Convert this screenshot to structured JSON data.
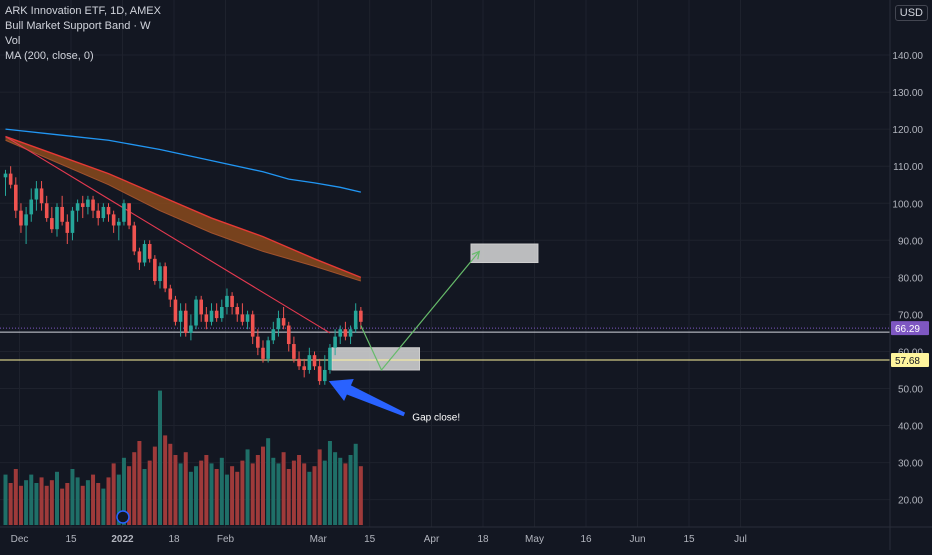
{
  "legend": {
    "symbol_line": "ARK Innovation ETF, 1D, AMEX",
    "indicator1": "Bull Market Support Band · W",
    "indicator2": "Vol",
    "indicator3": "MA (200, close, 0)"
  },
  "currency_label": "USD",
  "annotation_text": "Gap close!",
  "colors": {
    "background": "#131722",
    "up": "#26a69a",
    "down": "#ef5350",
    "vol_up": "#1f6f68",
    "vol_down": "#9e3a3a",
    "ma200": "#2196f3",
    "band_top": "#e53935",
    "band_fill": "#8a4a1c",
    "trendline": "#e53950",
    "projection": "#66bb6a",
    "arrow": "#2962ff",
    "support_line": "#fff59d",
    "price_badge": "#7e57c2"
  },
  "chart_data": {
    "type": "candlestick",
    "title": "ARK Innovation ETF, 1D, AMEX",
    "currency": "USD",
    "ylim": [
      10,
      150
    ],
    "y_ticks": [
      "20.00",
      "30.00",
      "40.00",
      "50.00",
      "60.00",
      "70.00",
      "80.00",
      "90.00",
      "100.00",
      "110.00",
      "120.00",
      "130.00",
      "140.00"
    ],
    "x_tick_labels": [
      {
        "label": "Dec",
        "bar": 0
      },
      {
        "label": "15",
        "bar": 10
      },
      {
        "label": "2022",
        "bar": 20
      },
      {
        "label": "18",
        "bar": 30
      },
      {
        "label": "Feb",
        "bar": 40
      },
      {
        "label": "Mar",
        "bar": 58
      },
      {
        "label": "15",
        "bar": 68
      },
      {
        "label": "Apr",
        "bar": 80
      },
      {
        "label": "18",
        "bar": 90
      },
      {
        "label": "May",
        "bar": 100
      },
      {
        "label": "16",
        "bar": 110
      },
      {
        "label": "Jun",
        "bar": 120
      },
      {
        "label": "15",
        "bar": 130
      },
      {
        "label": "Jul",
        "bar": 140
      }
    ],
    "ohlc": [
      [
        107,
        109,
        102,
        108
      ],
      [
        108,
        110,
        104,
        105
      ],
      [
        105,
        107,
        96,
        98
      ],
      [
        98,
        100,
        92,
        94
      ],
      [
        94,
        99,
        89,
        97
      ],
      [
        97,
        104,
        95,
        101
      ],
      [
        101,
        106,
        98,
        104
      ],
      [
        104,
        106,
        98,
        100
      ],
      [
        100,
        102,
        95,
        96
      ],
      [
        96,
        99,
        92,
        93
      ],
      [
        93,
        100,
        91,
        99
      ],
      [
        99,
        102,
        94,
        95
      ],
      [
        95,
        97,
        89,
        92
      ],
      [
        92,
        99,
        90,
        98
      ],
      [
        98,
        101,
        95,
        100
      ],
      [
        100,
        102,
        96,
        99
      ],
      [
        99,
        102,
        97,
        101
      ],
      [
        101,
        102,
        96,
        98
      ],
      [
        98,
        100,
        94,
        96
      ],
      [
        96,
        100,
        95,
        99
      ],
      [
        99,
        100,
        95,
        97
      ],
      [
        97,
        98,
        92,
        94
      ],
      [
        94,
        96,
        90,
        95
      ],
      [
        95,
        101,
        94,
        100
      ],
      [
        100,
        100,
        93,
        94
      ],
      [
        94,
        95,
        86,
        87
      ],
      [
        87,
        88,
        82,
        84
      ],
      [
        84,
        90,
        83,
        89
      ],
      [
        89,
        90,
        84,
        85
      ],
      [
        85,
        86,
        78,
        79
      ],
      [
        79,
        84,
        77,
        83
      ],
      [
        83,
        84,
        76,
        77
      ],
      [
        77,
        78,
        72,
        74
      ],
      [
        74,
        75,
        67,
        68
      ],
      [
        68,
        73,
        64,
        71
      ],
      [
        71,
        73,
        64,
        65
      ],
      [
        65,
        70,
        63,
        67
      ],
      [
        67,
        75,
        66,
        74
      ],
      [
        74,
        75,
        68,
        70
      ],
      [
        70,
        72,
        66,
        68
      ],
      [
        68,
        73,
        67,
        71
      ],
      [
        71,
        73,
        68,
        69
      ],
      [
        69,
        74,
        68,
        72
      ],
      [
        72,
        77,
        70,
        75
      ],
      [
        75,
        76,
        70,
        72
      ],
      [
        72,
        73,
        68,
        70
      ],
      [
        70,
        73,
        67,
        68
      ],
      [
        68,
        71,
        66,
        70
      ],
      [
        70,
        71,
        62,
        64
      ],
      [
        64,
        66,
        59,
        61
      ],
      [
        61,
        63,
        57,
        58
      ],
      [
        58,
        64,
        57,
        63
      ],
      [
        63,
        68,
        62,
        66
      ],
      [
        66,
        71,
        64,
        69
      ],
      [
        69,
        72,
        66,
        67
      ],
      [
        67,
        68,
        60,
        62
      ],
      [
        62,
        64,
        57,
        58
      ],
      [
        58,
        60,
        55,
        56
      ],
      [
        56,
        58,
        53,
        55
      ],
      [
        55,
        61,
        54,
        59
      ],
      [
        59,
        60,
        55,
        56
      ],
      [
        56,
        58,
        51,
        52
      ],
      [
        52,
        59,
        51,
        55
      ],
      [
        55,
        62,
        54,
        61
      ],
      [
        61,
        66,
        59,
        64
      ],
      [
        64,
        67,
        62,
        66
      ],
      [
        66,
        68,
        63,
        64
      ],
      [
        64,
        67,
        62,
        66
      ],
      [
        66,
        73,
        65,
        71
      ],
      [
        71,
        72,
        66,
        68
      ]
    ],
    "volumes": [
      18,
      15,
      20,
      14,
      16,
      18,
      15,
      17,
      14,
      16,
      19,
      13,
      15,
      20,
      17,
      14,
      16,
      18,
      15,
      13,
      17,
      22,
      18,
      24,
      21,
      26,
      30,
      20,
      23,
      28,
      48,
      32,
      29,
      25,
      22,
      26,
      19,
      21,
      23,
      25,
      22,
      20,
      24,
      18,
      21,
      19,
      23,
      27,
      22,
      25,
      28,
      31,
      24,
      22,
      26,
      20,
      23,
      25,
      22,
      19,
      21,
      27,
      23,
      30,
      26,
      24,
      22,
      25,
      29,
      21
    ],
    "ma200": [
      [
        0,
        120
      ],
      [
        10,
        118.5
      ],
      [
        20,
        117
      ],
      [
        30,
        114.5
      ],
      [
        40,
        111.5
      ],
      [
        50,
        108.5
      ],
      [
        55,
        106.5
      ],
      [
        60,
        105.5
      ],
      [
        65,
        104.3
      ],
      [
        69,
        103
      ]
    ],
    "support_band_upper": [
      [
        0,
        118
      ],
      [
        10,
        113
      ],
      [
        20,
        108
      ],
      [
        30,
        102
      ],
      [
        40,
        96
      ],
      [
        50,
        91
      ],
      [
        60,
        85
      ],
      [
        69,
        80
      ]
    ],
    "support_band_lower": [
      [
        0,
        117
      ],
      [
        10,
        111
      ],
      [
        20,
        105
      ],
      [
        30,
        98
      ],
      [
        40,
        92
      ],
      [
        50,
        87
      ],
      [
        60,
        83
      ],
      [
        69,
        79
      ]
    ],
    "trendline": [
      [
        0,
        118
      ],
      [
        63,
        65
      ]
    ],
    "horizontal_lines": [
      {
        "price": 66.29,
        "style": "dotted",
        "color": "#7e57c2"
      },
      {
        "price": 65.2,
        "style": "solid",
        "color": "#d1d4dc"
      },
      {
        "price": 57.68,
        "style": "solid",
        "color": "#fff59d"
      }
    ],
    "price_labels": [
      {
        "text": "66.29",
        "price": 66.29
      },
      {
        "text": "57.68",
        "price": 57.68
      }
    ],
    "zones": [
      {
        "bar_start": 63,
        "bar_end": 80,
        "price_high": 61,
        "price_low": 55
      },
      {
        "bar_start": 90,
        "bar_end": 103,
        "price_high": 89,
        "price_low": 84
      }
    ],
    "projection_path": [
      [
        69,
        67
      ],
      [
        73,
        55
      ],
      [
        92,
        87
      ]
    ],
    "gap_arrow": {
      "from": [
        72,
        43
      ],
      "to": [
        62,
        52
      ]
    }
  }
}
